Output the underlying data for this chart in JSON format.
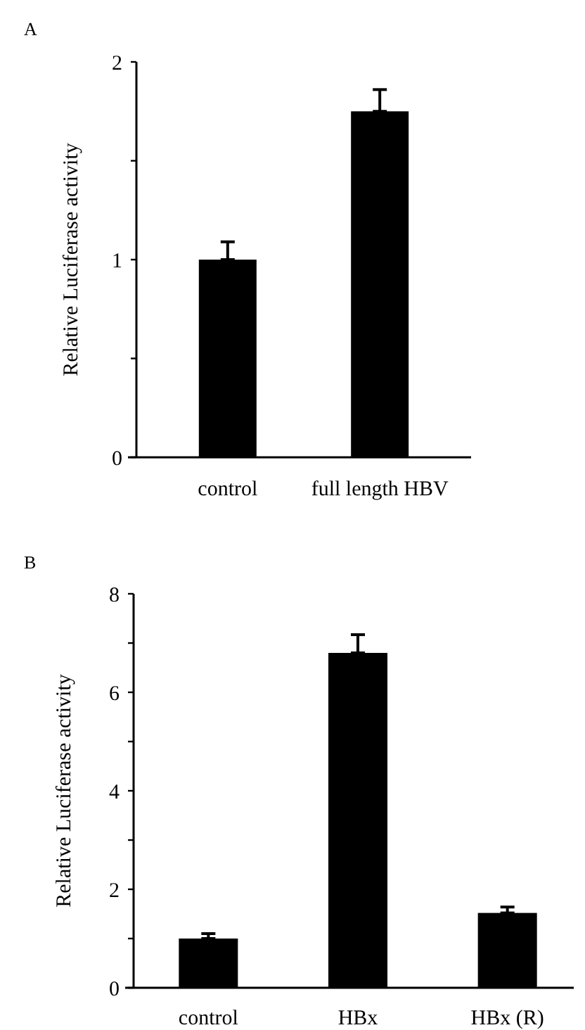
{
  "chart_data": [
    {
      "type": "bar",
      "title": "A",
      "ylabel": "Relative Luciferase activity",
      "categories": [
        "control",
        "full length HBV"
      ],
      "values": [
        1.0,
        1.75
      ],
      "errors": [
        [
          1.0,
          1.09
        ],
        [
          1.75,
          1.86
        ]
      ],
      "color": "#000000",
      "ylim": [
        0,
        2
      ],
      "yticks": [
        0,
        {
          "value": 0.5,
          "label": null
        },
        1,
        {
          "value": 1.5,
          "label": null
        },
        2
      ]
    },
    {
      "type": "bar",
      "title": "B",
      "ylabel": "Relative Luciferase activity",
      "categories": [
        "control",
        "HBx",
        "HBx (R)"
      ],
      "values": [
        1.0,
        6.8,
        1.52
      ],
      "errors": [
        [
          1.0,
          1.1
        ],
        [
          6.8,
          7.17
        ],
        [
          1.52,
          1.64
        ]
      ],
      "color": "#000000",
      "ylim": [
        0,
        8
      ],
      "yticks": [
        0,
        {
          "value": 1,
          "label": null
        },
        2,
        {
          "value": 3,
          "label": null
        },
        4,
        {
          "value": 5,
          "label": null
        },
        6,
        {
          "value": 7,
          "label": null
        },
        8
      ]
    }
  ]
}
